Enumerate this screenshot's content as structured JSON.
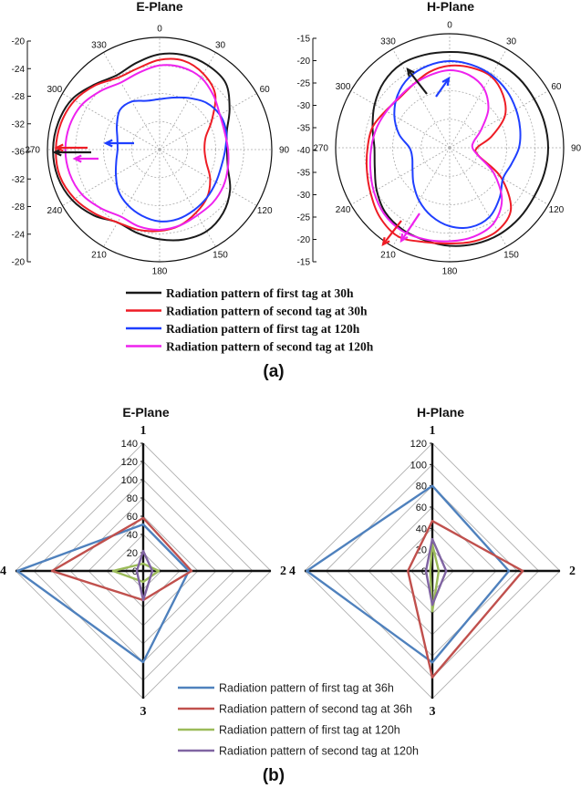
{
  "panels": {
    "a": {
      "label": "(a)"
    },
    "b": {
      "label": "(b)"
    }
  },
  "colors": {
    "black": "#1a1a1a",
    "red": "#ee1c25",
    "blue": "#1f3fff",
    "magenta": "#ee22ee",
    "b_blue": "#4f81bd",
    "b_red": "#c0504d",
    "b_green": "#9bbb59",
    "b_purple": "#8064a2"
  },
  "chart_data": [
    {
      "type": "polar-line",
      "title": "E-Plane",
      "angle_labels": [
        "0",
        "30",
        "60",
        "90",
        "120",
        "150",
        "180",
        "210",
        "240",
        "270",
        "300",
        "330"
      ],
      "radial_scale_labels": [
        "-20",
        "-24",
        "-28",
        "-32",
        "-36",
        "-32",
        "-28",
        "-24",
        "-20"
      ],
      "rlim": [
        -40,
        -20
      ],
      "series": [
        {
          "name": "Radiation pattern of first tag at 30h",
          "color_key": "black",
          "points": [
            [
              0,
              -23
            ],
            [
              15,
              -22.6
            ],
            [
              30,
              -22.7
            ],
            [
              45,
              -23.3
            ],
            [
              60,
              -25.6
            ],
            [
              75,
              -27.6
            ],
            [
              90,
              -28
            ],
            [
              105,
              -27.4
            ],
            [
              120,
              -25.5
            ],
            [
              135,
              -24.0
            ],
            [
              150,
              -23.2
            ],
            [
              165,
              -23.4
            ],
            [
              180,
              -24
            ],
            [
              195,
              -24.6
            ],
            [
              210,
              -25
            ],
            [
              225,
              -23.4
            ],
            [
              240,
              -22
            ],
            [
              255,
              -21.2
            ],
            [
              270,
              -21
            ],
            [
              285,
              -21.3
            ],
            [
              300,
              -22
            ],
            [
              315,
              -23.6
            ],
            [
              330,
              -24.7
            ],
            [
              345,
              -24
            ]
          ]
        },
        {
          "name": "Radiation pattern of second tag at 30h",
          "color_key": "red",
          "points": [
            [
              0,
              -24
            ],
            [
              15,
              -23.6
            ],
            [
              30,
              -24.4
            ],
            [
              45,
              -26.0
            ],
            [
              60,
              -29.2
            ],
            [
              75,
              -31.5
            ],
            [
              90,
              -32
            ],
            [
              105,
              -31.4
            ],
            [
              120,
              -29.6
            ],
            [
              135,
              -28.0
            ],
            [
              150,
              -27.0
            ],
            [
              165,
              -26.0
            ],
            [
              180,
              -25.5
            ],
            [
              195,
              -25.2
            ],
            [
              210,
              -25
            ],
            [
              225,
              -23.8
            ],
            [
              240,
              -22.5
            ],
            [
              255,
              -21.6
            ],
            [
              270,
              -21.5
            ],
            [
              285,
              -21.8
            ],
            [
              300,
              -22.5
            ],
            [
              315,
              -23.8
            ],
            [
              330,
              -25.2
            ],
            [
              345,
              -25
            ]
          ]
        },
        {
          "name": "Radiation pattern of first tag at 120h",
          "color_key": "blue",
          "points": [
            [
              0,
              -31
            ],
            [
              15,
              -30.4
            ],
            [
              30,
              -29.4
            ],
            [
              45,
              -28.2
            ],
            [
              60,
              -27.6
            ],
            [
              75,
              -27.7
            ],
            [
              90,
              -28.3
            ],
            [
              105,
              -28.6
            ],
            [
              120,
              -28.4
            ],
            [
              135,
              -28.0
            ],
            [
              150,
              -27.6
            ],
            [
              165,
              -27.2
            ],
            [
              180,
              -27.2
            ],
            [
              195,
              -27.8
            ],
            [
              210,
              -28.6
            ],
            [
              225,
              -29.6
            ],
            [
              240,
              -31.0
            ],
            [
              255,
              -32.0
            ],
            [
              270,
              -32.5
            ],
            [
              285,
              -32.2
            ],
            [
              300,
              -31.2
            ],
            [
              315,
              -30.0
            ],
            [
              330,
              -30.1
            ],
            [
              345,
              -31
            ]
          ]
        },
        {
          "name": "Radiation pattern of second tag at 120h",
          "color_key": "magenta",
          "points": [
            [
              0,
              -25
            ],
            [
              15,
              -24.8
            ],
            [
              30,
              -25.2
            ],
            [
              45,
              -26.4
            ],
            [
              60,
              -27.6
            ],
            [
              75,
              -28.0
            ],
            [
              90,
              -27.8
            ],
            [
              105,
              -27.4
            ],
            [
              120,
              -26.9
            ],
            [
              135,
              -26.6
            ],
            [
              150,
              -26.5
            ],
            [
              165,
              -26.0
            ],
            [
              180,
              -25.7
            ],
            [
              195,
              -25.8
            ],
            [
              210,
              -26.2
            ],
            [
              225,
              -25.2
            ],
            [
              240,
              -24.0
            ],
            [
              255,
              -23.4
            ],
            [
              270,
              -23.2
            ],
            [
              285,
              -23.4
            ],
            [
              300,
              -24.0
            ],
            [
              315,
              -25.2
            ],
            [
              330,
              -26.2
            ],
            [
              345,
              -25.8
            ]
          ]
        }
      ]
    },
    {
      "type": "polar-line",
      "title": "H-Plane",
      "angle_labels": [
        "0",
        "30",
        "60",
        "90",
        "120",
        "150",
        "180",
        "210",
        "240",
        "270",
        "300",
        "330"
      ],
      "radial_scale_labels": [
        "-15",
        "-20",
        "-25",
        "-30",
        "-35",
        "-40",
        "-35",
        "-30",
        "-25",
        "-20",
        "-15"
      ],
      "rlim": [
        -40,
        -15
      ],
      "series": [
        {
          "name": "Radiation pattern of first tag at 30h",
          "color_key": "black",
          "points": [
            [
              0,
              -19
            ],
            [
              15,
              -18.8
            ],
            [
              30,
              -18.6
            ],
            [
              45,
              -18.5
            ],
            [
              60,
              -18.6
            ],
            [
              75,
              -18.5
            ],
            [
              90,
              -18.4
            ],
            [
              105,
              -18.5
            ],
            [
              120,
              -18.6
            ],
            [
              135,
              -18.3
            ],
            [
              150,
              -18.1
            ],
            [
              165,
              -18.2
            ],
            [
              180,
              -18.5
            ],
            [
              195,
              -19.0
            ],
            [
              210,
              -19.3
            ],
            [
              225,
              -20.0
            ],
            [
              240,
              -21.5
            ],
            [
              255,
              -23.0
            ],
            [
              270,
              -23.5
            ],
            [
              285,
              -22.5
            ],
            [
              300,
              -21.0
            ],
            [
              315,
              -19.6
            ],
            [
              330,
              -18.8
            ],
            [
              345,
              -18.9
            ]
          ]
        },
        {
          "name": "Radiation pattern of second tag at 30h",
          "color_key": "red",
          "points": [
            [
              0,
              -22
            ],
            [
              15,
              -21.8
            ],
            [
              30,
              -21.9
            ],
            [
              45,
              -23.5
            ],
            [
              60,
              -26.0
            ],
            [
              75,
              -30.5
            ],
            [
              90,
              -34
            ],
            [
              105,
              -33.5
            ],
            [
              120,
              -27.0
            ],
            [
              135,
              -21.0
            ],
            [
              150,
              -19.0
            ],
            [
              165,
              -18.8
            ],
            [
              180,
              -19.0
            ],
            [
              195,
              -18.6
            ],
            [
              210,
              -17.5
            ],
            [
              225,
              -18.4
            ],
            [
              240,
              -20.0
            ],
            [
              255,
              -21.2
            ],
            [
              270,
              -22.0
            ],
            [
              285,
              -22.5
            ],
            [
              300,
              -23.8
            ],
            [
              315,
              -24.5
            ],
            [
              330,
              -24.0
            ],
            [
              345,
              -22.8
            ]
          ]
        },
        {
          "name": "Radiation pattern of first tag at 120h",
          "color_key": "blue",
          "points": [
            [
              0,
              -21
            ],
            [
              15,
              -21.2
            ],
            [
              30,
              -21.6
            ],
            [
              45,
              -22.3
            ],
            [
              60,
              -23.2
            ],
            [
              75,
              -24.0
            ],
            [
              90,
              -24.8
            ],
            [
              105,
              -26.0
            ],
            [
              120,
              -26.5
            ],
            [
              135,
              -24.5
            ],
            [
              150,
              -22.5
            ],
            [
              165,
              -22.0
            ],
            [
              180,
              -22.8
            ],
            [
              195,
              -24.5
            ],
            [
              210,
              -26.6
            ],
            [
              225,
              -28.8
            ],
            [
              240,
              -30.6
            ],
            [
              255,
              -31.5
            ],
            [
              270,
              -31.2
            ],
            [
              285,
              -28.5
            ],
            [
              300,
              -26.0
            ],
            [
              315,
              -23.8
            ],
            [
              330,
              -22.2
            ],
            [
              345,
              -21.4
            ]
          ]
        },
        {
          "name": "Radiation pattern of second tag at 120h",
          "color_key": "magenta",
          "points": [
            [
              0,
              -23
            ],
            [
              15,
              -23.5
            ],
            [
              30,
              -25.0
            ],
            [
              45,
              -28.0
            ],
            [
              60,
              -32.0
            ],
            [
              75,
              -34.5
            ],
            [
              90,
              -35
            ],
            [
              105,
              -33.6
            ],
            [
              120,
              -28.8
            ],
            [
              135,
              -23.8
            ],
            [
              150,
              -20.8
            ],
            [
              165,
              -19.8
            ],
            [
              180,
              -19.5
            ],
            [
              195,
              -19.2
            ],
            [
              210,
              -19.0
            ],
            [
              225,
              -19.6
            ],
            [
              240,
              -20.8
            ],
            [
              255,
              -22.0
            ],
            [
              270,
              -22.8
            ],
            [
              285,
              -23.4
            ],
            [
              300,
              -24.0
            ],
            [
              315,
              -24.3
            ],
            [
              330,
              -24.0
            ],
            [
              345,
              -23.5
            ]
          ]
        }
      ]
    },
    {
      "type": "radar",
      "title": "E-Plane",
      "axes": [
        "1",
        "2",
        "3",
        "4"
      ],
      "radial_ticks": [
        0,
        20,
        40,
        60,
        80,
        100,
        120,
        140
      ],
      "rlim": [
        0,
        140
      ],
      "series": [
        {
          "name": "Radiation pattern of first tag at 36h",
          "color_key": "b_blue",
          "values": [
            51,
            50,
            100,
            138
          ]
        },
        {
          "name": "Radiation pattern of second tag at 36h",
          "color_key": "b_red",
          "values": [
            58,
            53,
            32,
            100
          ]
        },
        {
          "name": "Radiation pattern of first tag at 120h",
          "color_key": "b_green",
          "values": [
            8,
            17,
            12,
            33
          ]
        },
        {
          "name": "Radiation pattern of second tag at 120h",
          "color_key": "b_purple",
          "values": [
            22,
            10,
            32,
            7
          ]
        }
      ]
    },
    {
      "type": "radar",
      "title": "H-Plane",
      "axes": [
        "1",
        "2",
        "3",
        "4"
      ],
      "radial_ticks": [
        0,
        20,
        40,
        60,
        80,
        100,
        120
      ],
      "rlim": [
        0,
        120
      ],
      "series": [
        {
          "name": "Radiation pattern of first tag at 36h",
          "color_key": "b_blue",
          "values": [
            80,
            72,
            86,
            118
          ]
        },
        {
          "name": "Radiation pattern of second tag at 36h",
          "color_key": "b_red",
          "values": [
            47,
            85,
            100,
            23
          ]
        },
        {
          "name": "Radiation pattern of first tag at 120h",
          "color_key": "b_green",
          "values": [
            25,
            6,
            38,
            2
          ]
        },
        {
          "name": "Radiation pattern of second tag at 120h",
          "color_key": "b_purple",
          "values": [
            30,
            13,
            32,
            6
          ]
        }
      ]
    }
  ],
  "legend_a": [
    "Radiation pattern of first tag at 30h",
    "Radiation pattern of second tag at 30h",
    "Radiation pattern of first tag at 120h",
    "Radiation pattern of second tag at 120h"
  ],
  "legend_b": [
    "Radiation pattern of first tag at 36h",
    "Radiation pattern of second tag at 36h",
    "Radiation pattern of first tag at 120h",
    "Radiation pattern of second tag at 120h"
  ]
}
